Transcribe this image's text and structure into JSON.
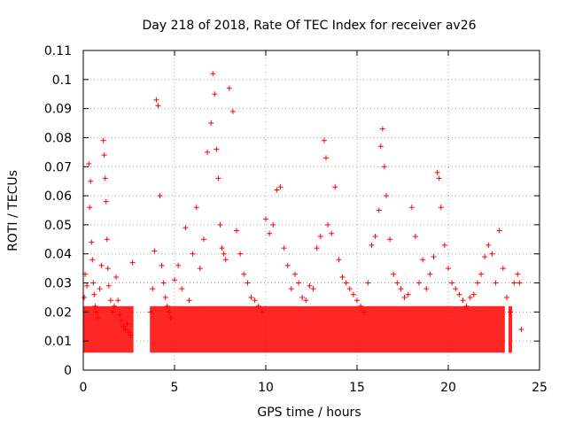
{
  "chart_data": {
    "type": "scatter",
    "title": "Day 218 of 2018, Rate Of TEC Index for receiver av26",
    "xlabel": "GPS time / hours",
    "ylabel": "ROTI / TECUs",
    "xlim": [
      0,
      25
    ],
    "ylim": [
      0,
      0.11
    ],
    "xticks": [
      "0",
      "5",
      "10",
      "15",
      "20",
      "25"
    ],
    "yticks": [
      "0",
      "0.01",
      "0.02",
      "0.03",
      "0.04",
      "0.05",
      "0.06",
      "0.07",
      "0.08",
      "0.09",
      "0.1",
      "0.11"
    ],
    "grid": true,
    "marker": "+",
    "color": "#ff0000",
    "series": [
      {
        "x": [
          0.05,
          0.1,
          0.2,
          0.3,
          0.35,
          0.4,
          0.45,
          0.5,
          0.55,
          0.6,
          0.65,
          0.7,
          0.8,
          0.9,
          1.0,
          1.1,
          1.15,
          1.2,
          1.25,
          1.3,
          1.35,
          1.4,
          1.5,
          1.6,
          1.7,
          1.8,
          1.9,
          2.0,
          2.1,
          2.2,
          2.3,
          2.4,
          2.5,
          2.6,
          2.7,
          3.7,
          3.8,
          3.9,
          4.0,
          4.1,
          4.2,
          4.3,
          4.4,
          4.5,
          4.6,
          4.7,
          4.8,
          5.0,
          5.2,
          5.4,
          5.6,
          5.8,
          6.0,
          6.2,
          6.4,
          6.6,
          6.8,
          7.0,
          7.1,
          7.2,
          7.3,
          7.4,
          7.5,
          7.6,
          7.7,
          7.8,
          8.0,
          8.2,
          8.4,
          8.6,
          8.8,
          9.0,
          9.2,
          9.4,
          9.6,
          9.8,
          10.0,
          10.2,
          10.4,
          10.6,
          10.8,
          11.0,
          11.2,
          11.4,
          11.6,
          11.8,
          12.0,
          12.2,
          12.4,
          12.6,
          12.8,
          13.0,
          13.2,
          13.3,
          13.4,
          13.6,
          13.8,
          14.0,
          14.2,
          14.4,
          14.6,
          14.8,
          15.0,
          15.2,
          15.4,
          15.6,
          15.8,
          16.0,
          16.2,
          16.3,
          16.4,
          16.5,
          16.6,
          16.8,
          17.0,
          17.2,
          17.4,
          17.6,
          17.8,
          18.0,
          18.2,
          18.4,
          18.6,
          18.8,
          19.0,
          19.2,
          19.4,
          19.5,
          19.6,
          19.8,
          20.0,
          20.2,
          20.4,
          20.6,
          20.8,
          21.0,
          21.2,
          21.4,
          21.6,
          21.8,
          22.0,
          22.2,
          22.4,
          22.6,
          22.8,
          23.0,
          23.2,
          23.4,
          23.6,
          23.8,
          23.9,
          24.0
        ],
        "y": [
          0.025,
          0.033,
          0.029,
          0.071,
          0.056,
          0.065,
          0.044,
          0.038,
          0.03,
          0.026,
          0.022,
          0.02,
          0.018,
          0.028,
          0.036,
          0.079,
          0.074,
          0.066,
          0.058,
          0.045,
          0.035,
          0.029,
          0.024,
          0.02,
          0.022,
          0.032,
          0.024,
          0.019,
          0.017,
          0.015,
          0.014,
          0.016,
          0.013,
          0.012,
          0.037,
          0.02,
          0.028,
          0.041,
          0.093,
          0.091,
          0.06,
          0.036,
          0.03,
          0.025,
          0.022,
          0.02,
          0.018,
          0.031,
          0.036,
          0.028,
          0.049,
          0.024,
          0.04,
          0.056,
          0.035,
          0.045,
          0.075,
          0.085,
          0.102,
          0.095,
          0.076,
          0.066,
          0.05,
          0.042,
          0.04,
          0.038,
          0.097,
          0.089,
          0.048,
          0.04,
          0.033,
          0.03,
          0.025,
          0.024,
          0.022,
          0.02,
          0.052,
          0.047,
          0.05,
          0.062,
          0.063,
          0.042,
          0.036,
          0.028,
          0.033,
          0.03,
          0.025,
          0.024,
          0.029,
          0.028,
          0.042,
          0.046,
          0.079,
          0.073,
          0.05,
          0.047,
          0.063,
          0.038,
          0.032,
          0.03,
          0.028,
          0.026,
          0.024,
          0.022,
          0.02,
          0.03,
          0.043,
          0.046,
          0.055,
          0.077,
          0.083,
          0.07,
          0.06,
          0.045,
          0.033,
          0.03,
          0.028,
          0.025,
          0.026,
          0.056,
          0.046,
          0.03,
          0.038,
          0.028,
          0.033,
          0.039,
          0.068,
          0.066,
          0.056,
          0.043,
          0.035,
          0.03,
          0.028,
          0.026,
          0.024,
          0.022,
          0.025,
          0.026,
          0.03,
          0.033,
          0.039,
          0.043,
          0.04,
          0.03,
          0.048,
          0.035,
          0.025,
          0.02,
          0.03,
          0.033,
          0.03,
          0.014
        ]
      }
    ]
  }
}
